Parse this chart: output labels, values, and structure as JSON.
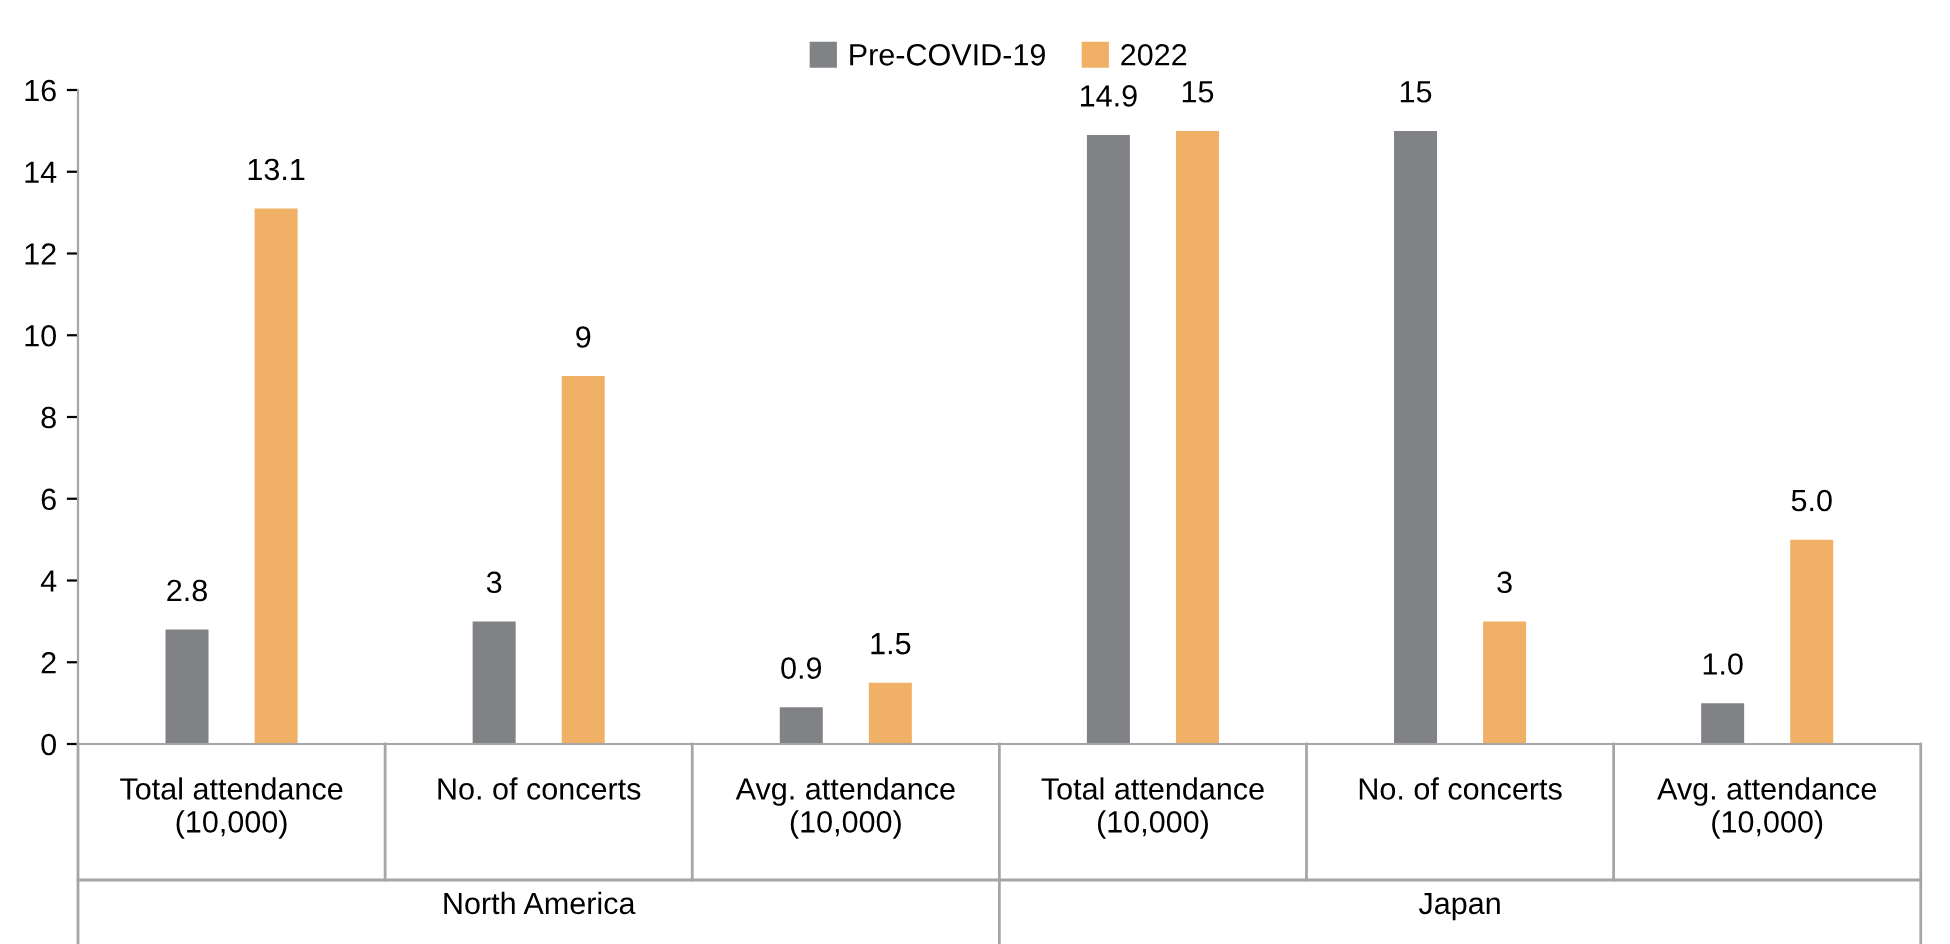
{
  "chart_data": {
    "type": "bar",
    "categories": [
      "Total attendance\n(10,000)",
      "No. of concerts",
      "Avg. attendance\n(10,000)",
      "Total attendance\n(10,000)",
      "No. of concerts",
      "Avg. attendance\n(10,000)"
    ],
    "series": [
      {
        "name": "Pre-COVID-19",
        "color": "#808285",
        "values": [
          2.8,
          3,
          0.9,
          14.9,
          15,
          1.0
        ],
        "value_labels": [
          "2.8",
          "3",
          "0.9",
          "14.9",
          "15",
          "1.0"
        ]
      },
      {
        "name": "2022",
        "color": "#f0b065",
        "values": [
          13.1,
          9,
          1.5,
          15,
          3,
          5.0
        ],
        "value_labels": [
          "13.1",
          "9",
          "1.5",
          "15",
          "3",
          "5.0"
        ]
      }
    ],
    "annotations": [
      "North America",
      "Japan"
    ],
    "ylim": [
      0,
      16
    ],
    "yticks": [
      0,
      2,
      4,
      6,
      8,
      10,
      12,
      14,
      16
    ],
    "grid": false,
    "legend": "top"
  }
}
